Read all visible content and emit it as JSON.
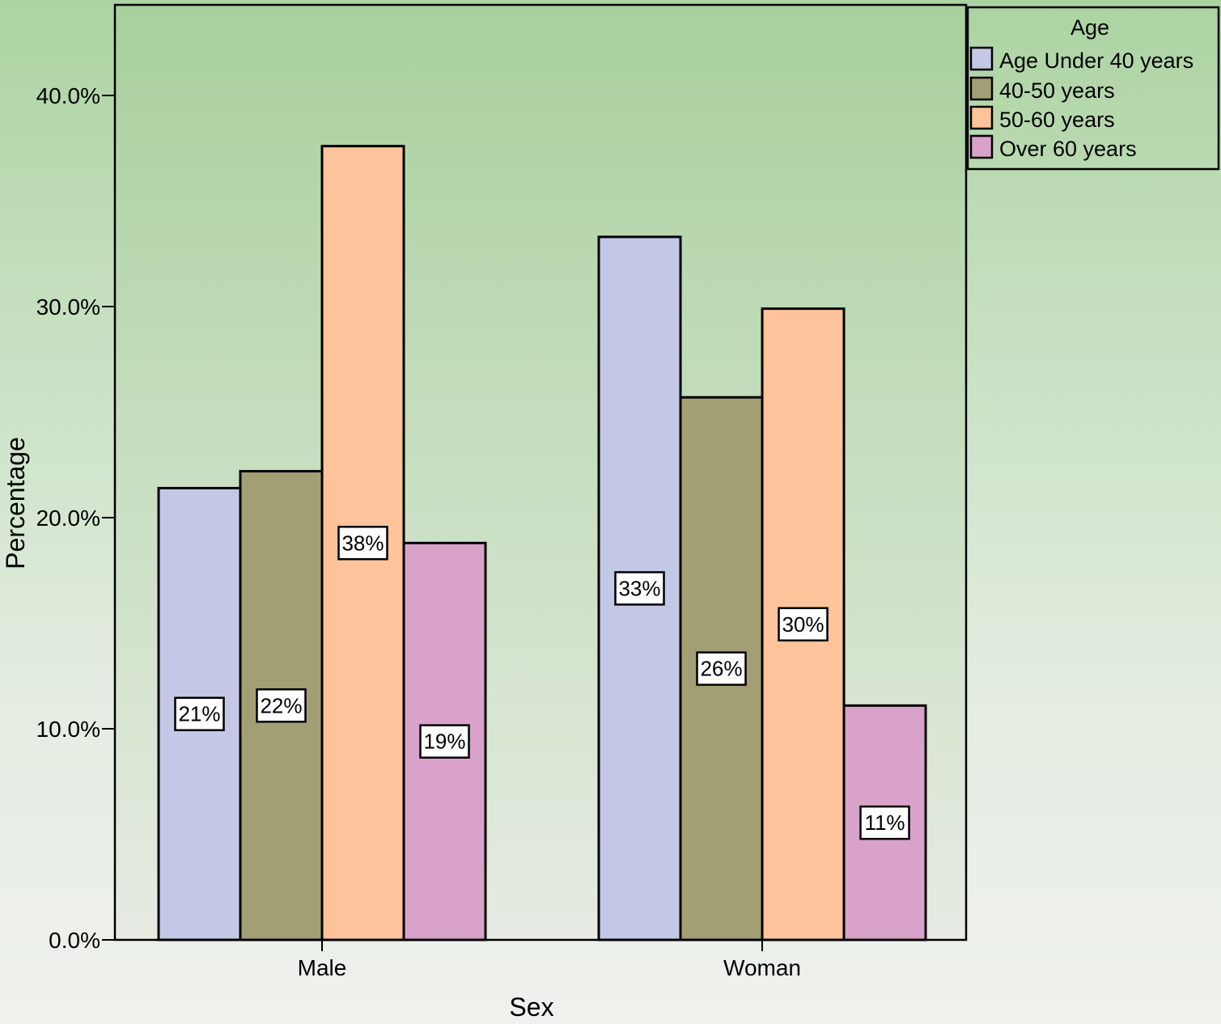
{
  "chart_data": {
    "type": "bar",
    "title": "",
    "xlabel": "Sex",
    "ylabel": "Percentage",
    "ylim": [
      0,
      44.5
    ],
    "yticks": [
      0,
      10,
      20,
      30,
      40
    ],
    "ytick_labels": [
      "0.0%",
      "10.0%",
      "20.0%",
      "30.0%",
      "40.0%"
    ],
    "categories": [
      "Male",
      "Woman"
    ],
    "series": [
      {
        "name": "Age Under 40 years",
        "color": "#c3c8e6",
        "values": [
          21.4,
          33.3
        ],
        "labels": [
          "21%",
          "33%"
        ]
      },
      {
        "name": "40-50 years",
        "color": "#a39f74",
        "values": [
          22.2,
          25.7
        ],
        "labels": [
          "22%",
          "26%"
        ]
      },
      {
        "name": "50-60 years",
        "color": "#fdc39a",
        "values": [
          37.6,
          29.9
        ],
        "labels": [
          "38%",
          "30%"
        ]
      },
      {
        "name": "Over 60 years",
        "color": "#d9a2ca",
        "values": [
          18.8,
          11.1
        ],
        "labels": [
          "19%",
          "11%"
        ]
      }
    ],
    "legend": {
      "title": "Age",
      "position": "top-right, outside plot"
    },
    "grid": false
  }
}
